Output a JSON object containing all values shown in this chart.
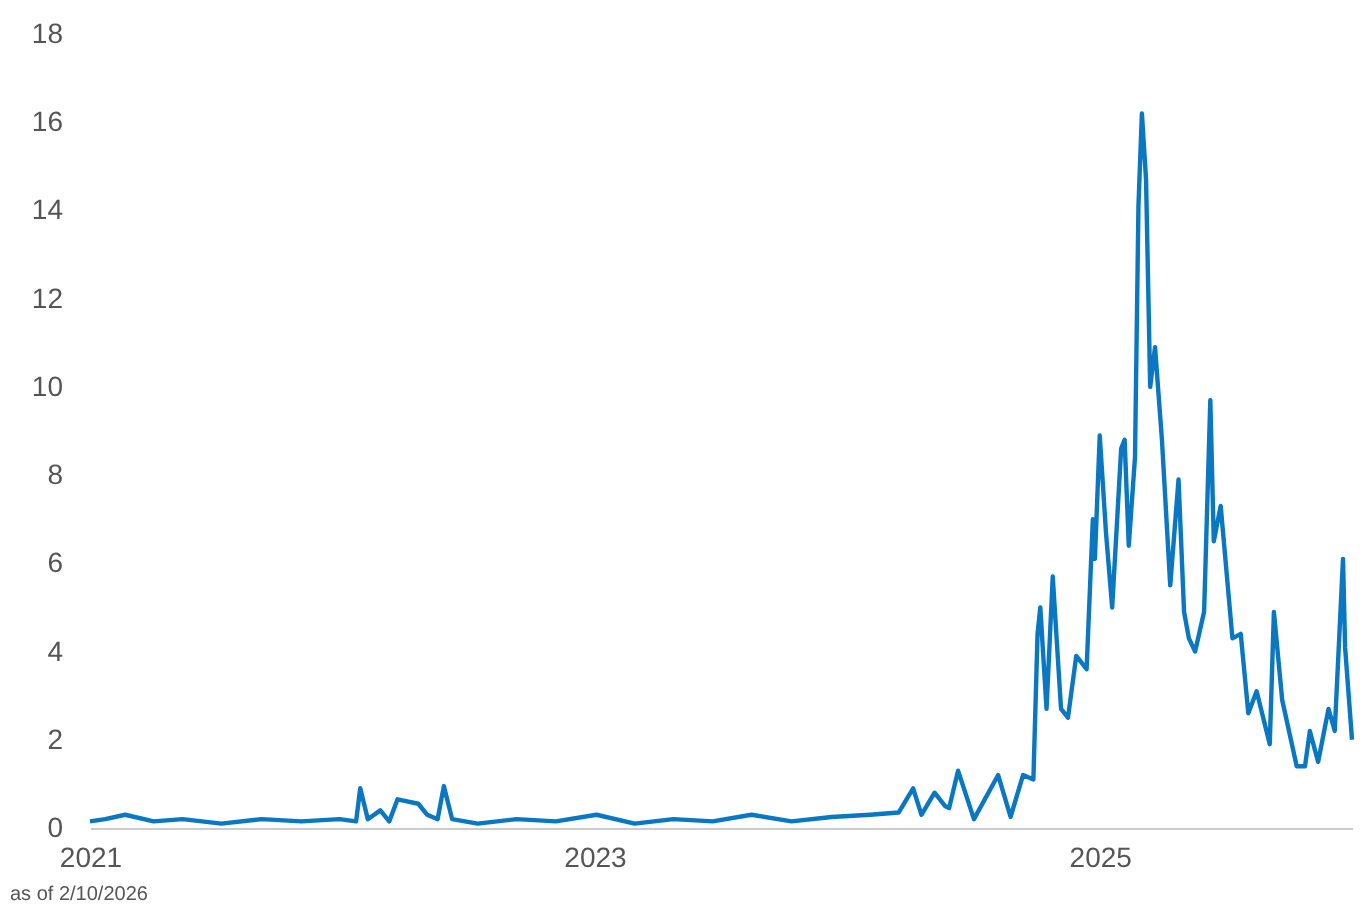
{
  "chart_data": {
    "type": "line",
    "x": [
      "2021-01-01",
      "2021-01-23",
      "2021-02-21",
      "2021-04-03",
      "2021-05-15",
      "2021-07-10",
      "2021-09-06",
      "2021-11-03",
      "2021-12-28",
      "2022-01-21",
      "2022-01-27",
      "2022-02-07",
      "2022-02-25",
      "2022-03-10",
      "2022-03-22",
      "2022-04-21",
      "2022-05-04",
      "2022-05-19",
      "2022-05-28",
      "2022-06-09",
      "2022-07-16",
      "2022-09-10",
      "2022-11-06",
      "2023-01-04",
      "2023-02-28",
      "2023-04-25",
      "2023-06-21",
      "2023-08-16",
      "2023-10-13",
      "2023-12-10",
      "2024-02-04",
      "2024-03-16",
      "2024-04-06",
      "2024-04-18",
      "2024-05-07",
      "2024-05-22",
      "2024-05-28",
      "2024-06-10",
      "2024-07-03",
      "2024-08-07",
      "2024-08-25",
      "2024-09-12",
      "2024-09-27",
      "2024-10-03",
      "2024-10-07",
      "2024-10-16",
      "2024-10-25",
      "2024-11-06",
      "2024-11-16",
      "2024-11-28",
      "2024-12-13",
      "2024-12-22",
      "2024-12-25",
      "2025-01-01",
      "2025-01-10",
      "2025-01-19",
      "2025-02-01",
      "2025-02-06",
      "2025-02-12",
      "2025-02-21",
      "2025-02-26",
      "2025-03-03",
      "2025-03-09",
      "2025-03-15",
      "2025-03-22",
      "2025-04-01",
      "2025-04-13",
      "2025-04-25",
      "2025-05-03",
      "2025-05-10",
      "2025-05-19",
      "2025-06-01",
      "2025-06-10",
      "2025-06-15",
      "2025-06-25",
      "2025-07-12",
      "2025-07-24",
      "2025-08-04",
      "2025-08-16",
      "2025-09-04",
      "2025-09-10",
      "2025-09-22",
      "2025-10-13",
      "2025-10-25",
      "2025-11-01",
      "2025-11-13",
      "2025-11-28",
      "2025-12-07",
      "2025-12-19",
      "2025-12-22",
      "2026-01-01"
    ],
    "series": [
      {
        "color": "#0a77c2",
        "values": [
          0.15,
          0.2,
          0.3,
          0.15,
          0.2,
          0.1,
          0.2,
          0.15,
          0.2,
          0.15,
          0.9,
          0.2,
          0.4,
          0.15,
          0.65,
          0.55,
          0.3,
          0.2,
          0.95,
          0.2,
          0.1,
          0.2,
          0.15,
          0.3,
          0.1,
          0.2,
          0.15,
          0.3,
          0.15,
          0.25,
          0.3,
          0.35,
          0.9,
          0.3,
          0.8,
          0.5,
          0.45,
          1.3,
          0.2,
          1.2,
          0.25,
          1.2,
          1.1,
          4.4,
          5.0,
          2.7,
          5.7,
          2.7,
          2.5,
          3.9,
          3.6,
          7.0,
          6.1,
          8.9,
          6.7,
          5.0,
          8.6,
          8.8,
          6.4,
          8.4,
          14.1,
          16.2,
          14.7,
          10.0,
          10.9,
          8.8,
          5.5,
          7.9,
          4.9,
          4.3,
          4.0,
          4.9,
          9.7,
          6.5,
          7.3,
          4.3,
          4.4,
          2.6,
          3.1,
          1.9,
          4.9,
          2.9,
          1.4,
          1.4,
          2.2,
          1.5,
          2.7,
          2.2,
          6.1,
          4.1,
          2.0
        ]
      }
    ],
    "xlim": [
      "2021-01-01",
      "2026-01-01"
    ],
    "xticks": [
      "2021",
      "2023",
      "2025"
    ],
    "ylim": [
      0,
      18
    ],
    "yticks": [
      0,
      2,
      4,
      6,
      8,
      10,
      12,
      14,
      16,
      18
    ],
    "grid": false,
    "legend": false,
    "line_style": "solid",
    "marker": "none",
    "annotations": [
      "as of 2/10/2026"
    ]
  }
}
